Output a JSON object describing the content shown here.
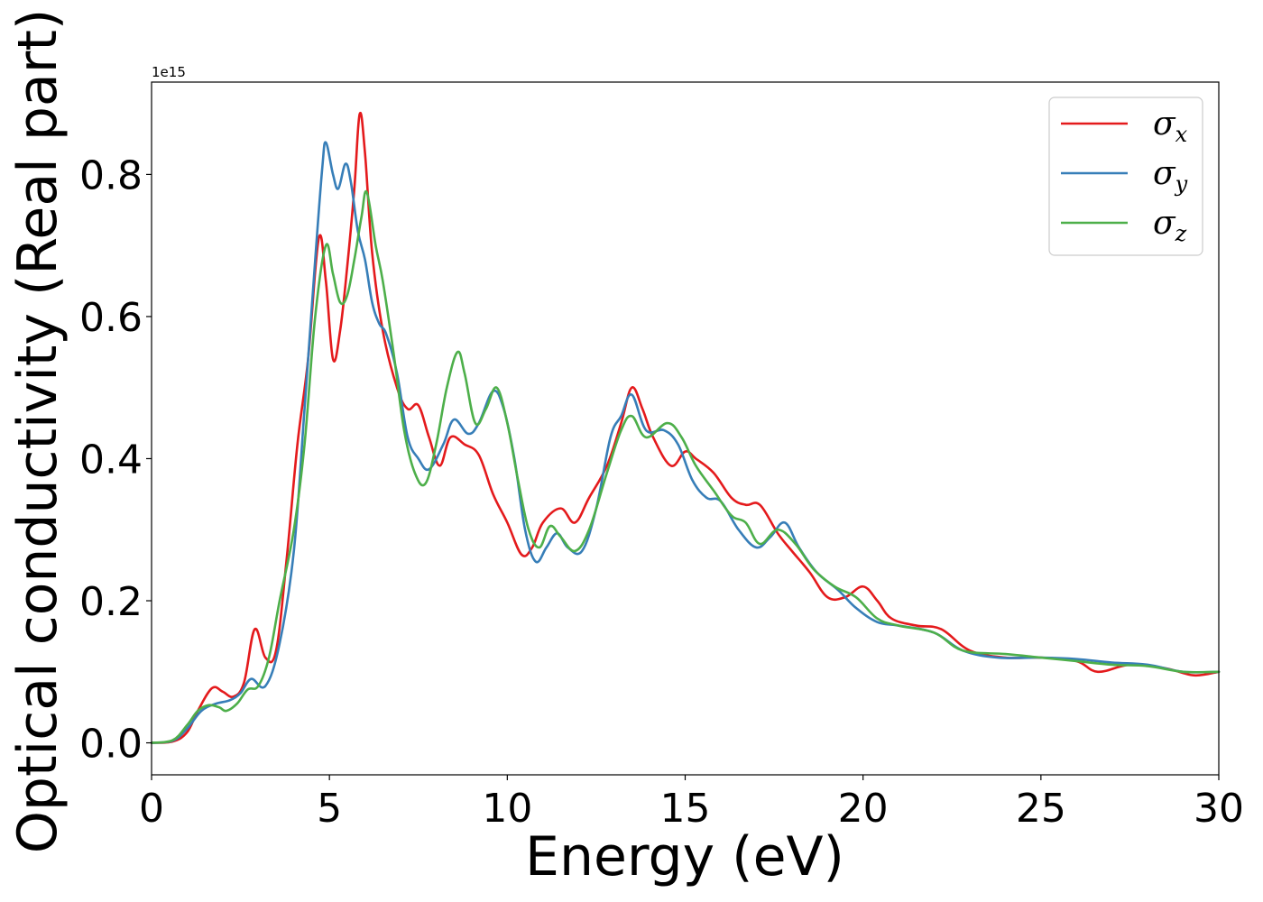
{
  "chart_data": {
    "type": "line",
    "xlabel": "Energy (eV)",
    "ylabel": "Optical conductivity (Real part)",
    "y_offset_label": "1e15",
    "xlim": [
      0,
      30
    ],
    "ylim": [
      -0.045,
      0.93
    ],
    "x_ticks": [
      0,
      5,
      10,
      15,
      20,
      25,
      30
    ],
    "x_tick_labels": [
      "0",
      "5",
      "10",
      "15",
      "20",
      "25",
      "30"
    ],
    "y_ticks": [
      0.0,
      0.2,
      0.4,
      0.6,
      0.8
    ],
    "y_tick_labels": [
      "0.0",
      "0.2",
      "0.4",
      "0.6",
      "0.8"
    ],
    "grid": false,
    "legend_position": "top-right",
    "series": [
      {
        "name": "σx",
        "base": "σ",
        "sub": "x",
        "color": "#e41a1c",
        "points": [
          [
            0,
            0
          ],
          [
            0.6,
            0.002
          ],
          [
            1.0,
            0.015
          ],
          [
            1.3,
            0.045
          ],
          [
            1.7,
            0.077
          ],
          [
            2.0,
            0.072
          ],
          [
            2.3,
            0.065
          ],
          [
            2.6,
            0.085
          ],
          [
            2.9,
            0.16
          ],
          [
            3.2,
            0.12
          ],
          [
            3.5,
            0.13
          ],
          [
            3.8,
            0.26
          ],
          [
            4.1,
            0.42
          ],
          [
            4.4,
            0.54
          ],
          [
            4.7,
            0.71
          ],
          [
            4.9,
            0.65
          ],
          [
            5.1,
            0.54
          ],
          [
            5.3,
            0.58
          ],
          [
            5.5,
            0.67
          ],
          [
            5.7,
            0.78
          ],
          [
            5.85,
            0.885
          ],
          [
            6.0,
            0.83
          ],
          [
            6.2,
            0.69
          ],
          [
            6.5,
            0.58
          ],
          [
            6.9,
            0.5
          ],
          [
            7.2,
            0.47
          ],
          [
            7.5,
            0.475
          ],
          [
            7.8,
            0.43
          ],
          [
            8.1,
            0.39
          ],
          [
            8.4,
            0.43
          ],
          [
            8.8,
            0.42
          ],
          [
            9.2,
            0.405
          ],
          [
            9.6,
            0.35
          ],
          [
            10.0,
            0.31
          ],
          [
            10.4,
            0.265
          ],
          [
            10.7,
            0.275
          ],
          [
            11.0,
            0.31
          ],
          [
            11.5,
            0.33
          ],
          [
            11.9,
            0.31
          ],
          [
            12.3,
            0.345
          ],
          [
            12.8,
            0.39
          ],
          [
            13.2,
            0.45
          ],
          [
            13.5,
            0.5
          ],
          [
            13.8,
            0.47
          ],
          [
            14.1,
            0.43
          ],
          [
            14.6,
            0.39
          ],
          [
            15.0,
            0.41
          ],
          [
            15.3,
            0.4
          ],
          [
            15.8,
            0.38
          ],
          [
            16.3,
            0.345
          ],
          [
            16.7,
            0.335
          ],
          [
            17.1,
            0.335
          ],
          [
            17.6,
            0.295
          ],
          [
            18.0,
            0.27
          ],
          [
            18.5,
            0.24
          ],
          [
            19.0,
            0.205
          ],
          [
            19.5,
            0.205
          ],
          [
            20.0,
            0.22
          ],
          [
            20.4,
            0.2
          ],
          [
            20.8,
            0.175
          ],
          [
            21.5,
            0.165
          ],
          [
            22.2,
            0.16
          ],
          [
            23.0,
            0.13
          ],
          [
            24.0,
            0.12
          ],
          [
            25.0,
            0.12
          ],
          [
            26.0,
            0.115
          ],
          [
            26.6,
            0.1
          ],
          [
            27.5,
            0.11
          ],
          [
            28.5,
            0.105
          ],
          [
            29.3,
            0.095
          ],
          [
            30.0,
            0.1
          ]
        ]
      },
      {
        "name": "σy",
        "base": "σ",
        "sub": "y",
        "color": "#377eb8",
        "points": [
          [
            0,
            0
          ],
          [
            0.6,
            0.003
          ],
          [
            1.0,
            0.02
          ],
          [
            1.4,
            0.045
          ],
          [
            1.8,
            0.055
          ],
          [
            2.2,
            0.06
          ],
          [
            2.5,
            0.07
          ],
          [
            2.8,
            0.09
          ],
          [
            3.2,
            0.08
          ],
          [
            3.6,
            0.14
          ],
          [
            4.0,
            0.27
          ],
          [
            4.3,
            0.47
          ],
          [
            4.6,
            0.68
          ],
          [
            4.8,
            0.81
          ],
          [
            4.9,
            0.845
          ],
          [
            5.1,
            0.8
          ],
          [
            5.25,
            0.78
          ],
          [
            5.45,
            0.815
          ],
          [
            5.6,
            0.79
          ],
          [
            5.8,
            0.72
          ],
          [
            6.0,
            0.68
          ],
          [
            6.2,
            0.62
          ],
          [
            6.4,
            0.59
          ],
          [
            6.6,
            0.575
          ],
          [
            6.9,
            0.52
          ],
          [
            7.2,
            0.43
          ],
          [
            7.5,
            0.4
          ],
          [
            7.8,
            0.385
          ],
          [
            8.2,
            0.42
          ],
          [
            8.5,
            0.455
          ],
          [
            8.9,
            0.435
          ],
          [
            9.2,
            0.45
          ],
          [
            9.6,
            0.495
          ],
          [
            9.9,
            0.47
          ],
          [
            10.2,
            0.4
          ],
          [
            10.5,
            0.3
          ],
          [
            10.8,
            0.255
          ],
          [
            11.1,
            0.275
          ],
          [
            11.4,
            0.295
          ],
          [
            11.7,
            0.275
          ],
          [
            12.1,
            0.27
          ],
          [
            12.5,
            0.33
          ],
          [
            12.9,
            0.43
          ],
          [
            13.2,
            0.46
          ],
          [
            13.5,
            0.49
          ],
          [
            13.9,
            0.44
          ],
          [
            14.4,
            0.44
          ],
          [
            14.8,
            0.42
          ],
          [
            15.2,
            0.37
          ],
          [
            15.6,
            0.345
          ],
          [
            16.0,
            0.34
          ],
          [
            16.5,
            0.3
          ],
          [
            17.0,
            0.275
          ],
          [
            17.4,
            0.29
          ],
          [
            17.8,
            0.31
          ],
          [
            18.2,
            0.275
          ],
          [
            18.7,
            0.24
          ],
          [
            19.3,
            0.215
          ],
          [
            19.8,
            0.19
          ],
          [
            20.4,
            0.17
          ],
          [
            21.0,
            0.165
          ],
          [
            22.0,
            0.155
          ],
          [
            22.8,
            0.13
          ],
          [
            23.8,
            0.12
          ],
          [
            25.0,
            0.12
          ],
          [
            26.0,
            0.118
          ],
          [
            27.0,
            0.113
          ],
          [
            28.0,
            0.11
          ],
          [
            29.0,
            0.1
          ],
          [
            30.0,
            0.1
          ]
        ]
      },
      {
        "name": "σz",
        "base": "σ",
        "sub": "z",
        "color": "#4daf4a",
        "points": [
          [
            0,
            0
          ],
          [
            0.6,
            0.004
          ],
          [
            1.0,
            0.025
          ],
          [
            1.3,
            0.045
          ],
          [
            1.6,
            0.053
          ],
          [
            1.9,
            0.05
          ],
          [
            2.1,
            0.045
          ],
          [
            2.4,
            0.055
          ],
          [
            2.7,
            0.075
          ],
          [
            3.0,
            0.08
          ],
          [
            3.3,
            0.12
          ],
          [
            3.6,
            0.2
          ],
          [
            4.0,
            0.3
          ],
          [
            4.3,
            0.42
          ],
          [
            4.6,
            0.6
          ],
          [
            4.9,
            0.7
          ],
          [
            5.1,
            0.66
          ],
          [
            5.3,
            0.62
          ],
          [
            5.5,
            0.63
          ],
          [
            5.7,
            0.68
          ],
          [
            5.9,
            0.74
          ],
          [
            6.05,
            0.775
          ],
          [
            6.3,
            0.7
          ],
          [
            6.5,
            0.65
          ],
          [
            6.8,
            0.55
          ],
          [
            7.1,
            0.44
          ],
          [
            7.4,
            0.38
          ],
          [
            7.7,
            0.365
          ],
          [
            8.0,
            0.42
          ],
          [
            8.3,
            0.5
          ],
          [
            8.6,
            0.55
          ],
          [
            8.8,
            0.52
          ],
          [
            9.1,
            0.45
          ],
          [
            9.4,
            0.47
          ],
          [
            9.7,
            0.5
          ],
          [
            10.0,
            0.45
          ],
          [
            10.3,
            0.37
          ],
          [
            10.6,
            0.3
          ],
          [
            10.9,
            0.275
          ],
          [
            11.2,
            0.305
          ],
          [
            11.5,
            0.29
          ],
          [
            11.9,
            0.27
          ],
          [
            12.3,
            0.3
          ],
          [
            12.8,
            0.38
          ],
          [
            13.2,
            0.44
          ],
          [
            13.5,
            0.46
          ],
          [
            13.9,
            0.43
          ],
          [
            14.5,
            0.45
          ],
          [
            14.9,
            0.43
          ],
          [
            15.3,
            0.39
          ],
          [
            15.8,
            0.355
          ],
          [
            16.3,
            0.32
          ],
          [
            16.7,
            0.31
          ],
          [
            17.1,
            0.28
          ],
          [
            17.6,
            0.3
          ],
          [
            18.1,
            0.28
          ],
          [
            18.6,
            0.245
          ],
          [
            19.2,
            0.22
          ],
          [
            19.8,
            0.205
          ],
          [
            20.4,
            0.175
          ],
          [
            21.0,
            0.165
          ],
          [
            22.0,
            0.155
          ],
          [
            22.8,
            0.13
          ],
          [
            24.0,
            0.125
          ],
          [
            25.0,
            0.12
          ],
          [
            26.0,
            0.115
          ],
          [
            27.0,
            0.11
          ],
          [
            28.0,
            0.108
          ],
          [
            29.0,
            0.1
          ],
          [
            30.0,
            0.1
          ]
        ]
      }
    ]
  }
}
